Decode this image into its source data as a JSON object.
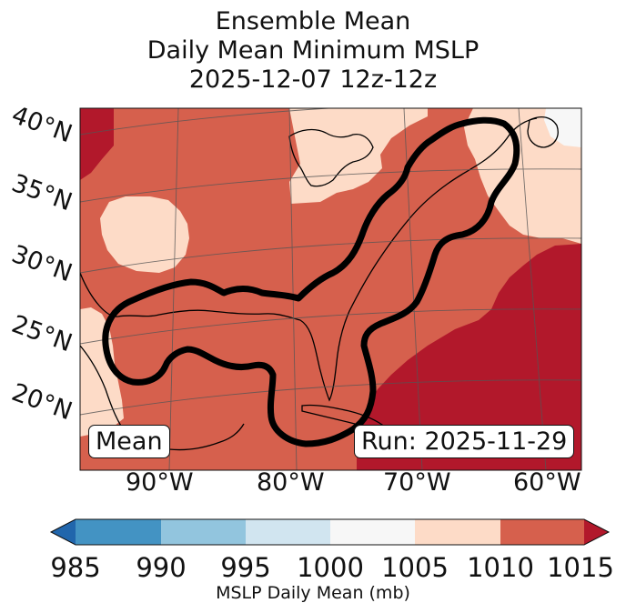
{
  "title": {
    "line1": "Ensemble Mean",
    "line2": "Daily Mean Minimum MSLP",
    "line3": "2025-12-07 12z-12z"
  },
  "map": {
    "lat_labels": [
      "40°N",
      "35°N",
      "30°N",
      "25°N",
      "20°N"
    ],
    "lon_labels": [
      "90°W",
      "80°W",
      "70°W",
      "60°W"
    ],
    "mean_tag": "Mean",
    "run_tag": "Run: 2025-11-29",
    "colors": {
      "c1005_1010": "#fddbc7",
      "c1010_1015": "#d6604d",
      "c1015_plus": "#b2182b",
      "c1000_1005": "#f7f7f7",
      "outline": "#000000",
      "grid": "#555555"
    }
  },
  "colorbar": {
    "label": "MSLP Daily Mean (mb)",
    "ticks": [
      "985",
      "990",
      "995",
      "1000",
      "1005",
      "1010",
      "1015"
    ],
    "bins": [
      {
        "range": "<985",
        "color": "#2166ac"
      },
      {
        "range": "985-990",
        "color": "#4393c3"
      },
      {
        "range": "990-995",
        "color": "#92c5de"
      },
      {
        "range": "995-1000",
        "color": "#d1e5f0"
      },
      {
        "range": "1000-1005",
        "color": "#f7f7f7"
      },
      {
        "range": "1005-1010",
        "color": "#fddbc7"
      },
      {
        "range": "1010-1015",
        "color": "#d6604d"
      },
      {
        "range": ">1015",
        "color": "#b2182b"
      }
    ]
  }
}
